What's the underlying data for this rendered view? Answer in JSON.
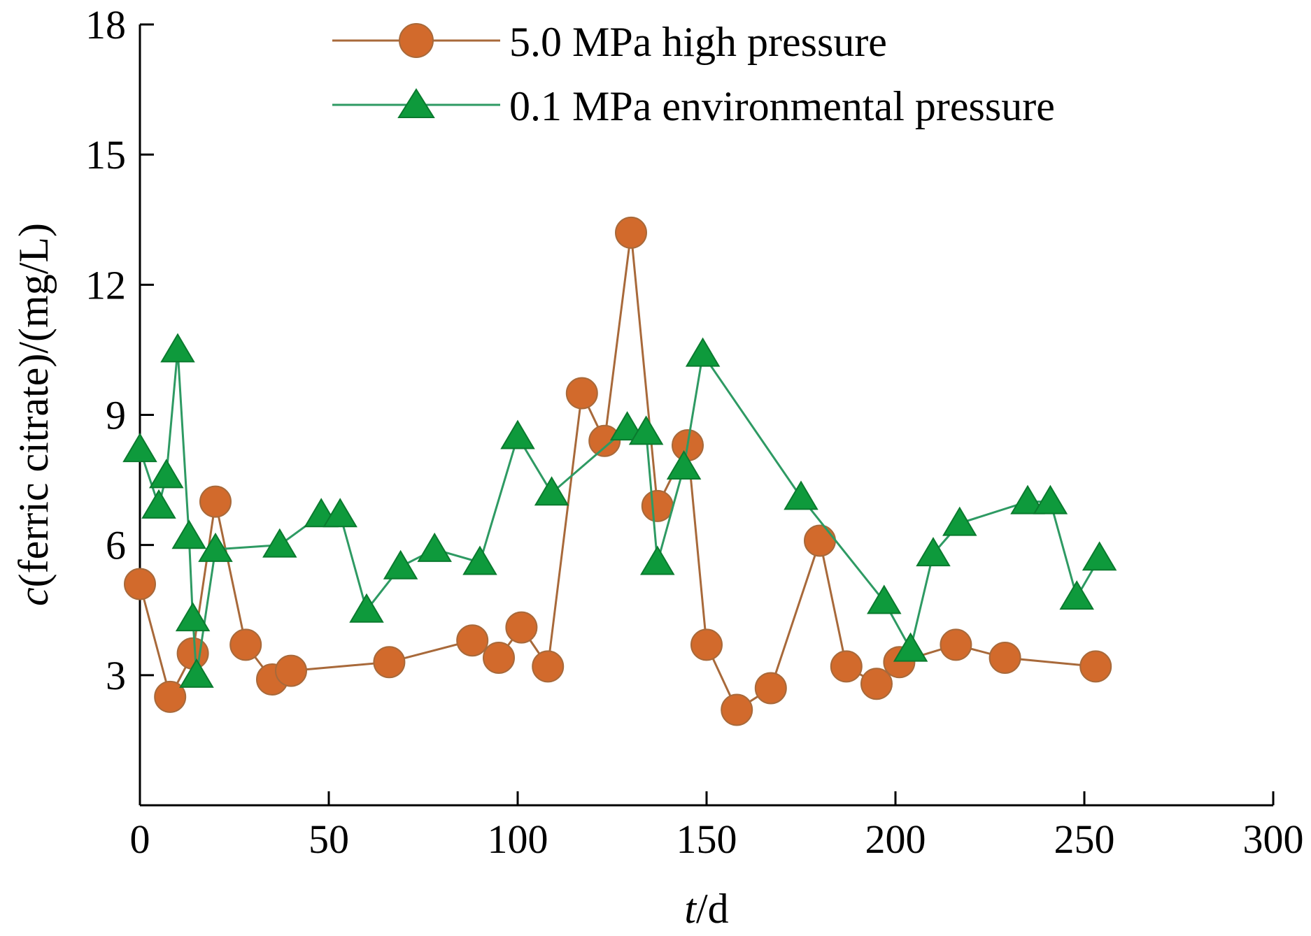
{
  "chart_data": {
    "type": "line",
    "xlabel_italic": "t",
    "xlabel_rest": "/d",
    "ylabel_italic": "c",
    "ylabel_rest": "(ferric citrate)/(mg/L)",
    "xlim": [
      0,
      300
    ],
    "ylim": [
      0,
      18
    ],
    "xticks": [
      0,
      50,
      100,
      150,
      200,
      250,
      300
    ],
    "yticks": [
      3,
      6,
      9,
      12,
      15,
      18
    ],
    "grid": false,
    "legend_position": "top",
    "series": [
      {
        "name": "5.0 MPa high pressure",
        "marker": "circle",
        "line_color": "#a8693a",
        "marker_color": "#d26a2c",
        "x": [
          0,
          8,
          14,
          20,
          28,
          35,
          40,
          66,
          88,
          95,
          101,
          108,
          117,
          123,
          130,
          137,
          145,
          150,
          158,
          167,
          180,
          187,
          195,
          201,
          216,
          229,
          253
        ],
        "y": [
          5.1,
          2.5,
          3.5,
          7.0,
          3.7,
          2.9,
          3.1,
          3.3,
          3.8,
          3.4,
          4.1,
          3.2,
          9.5,
          8.4,
          13.2,
          6.9,
          8.3,
          3.7,
          2.2,
          2.7,
          6.1,
          3.2,
          2.8,
          3.3,
          3.7,
          3.4,
          3.2
        ]
      },
      {
        "name": "0.1 MPa environmental pressure",
        "marker": "triangle",
        "line_color": "#2e9a63",
        "marker_color": "#0e9a3c",
        "x": [
          0,
          5,
          7,
          10,
          13,
          14,
          15,
          20,
          37,
          48,
          53,
          60,
          69,
          78,
          90,
          100,
          109,
          129,
          134,
          137,
          144,
          149,
          175,
          197,
          204,
          210,
          217,
          235,
          241,
          248,
          254
        ],
        "y": [
          8.2,
          6.9,
          7.6,
          10.5,
          6.2,
          4.3,
          3.0,
          5.9,
          6.0,
          6.7,
          6.7,
          4.5,
          5.5,
          5.9,
          5.6,
          8.5,
          7.2,
          8.7,
          8.6,
          5.6,
          7.8,
          10.4,
          7.1,
          4.7,
          3.6,
          5.8,
          6.5,
          7.0,
          7.0,
          4.8,
          5.7
        ]
      }
    ]
  }
}
